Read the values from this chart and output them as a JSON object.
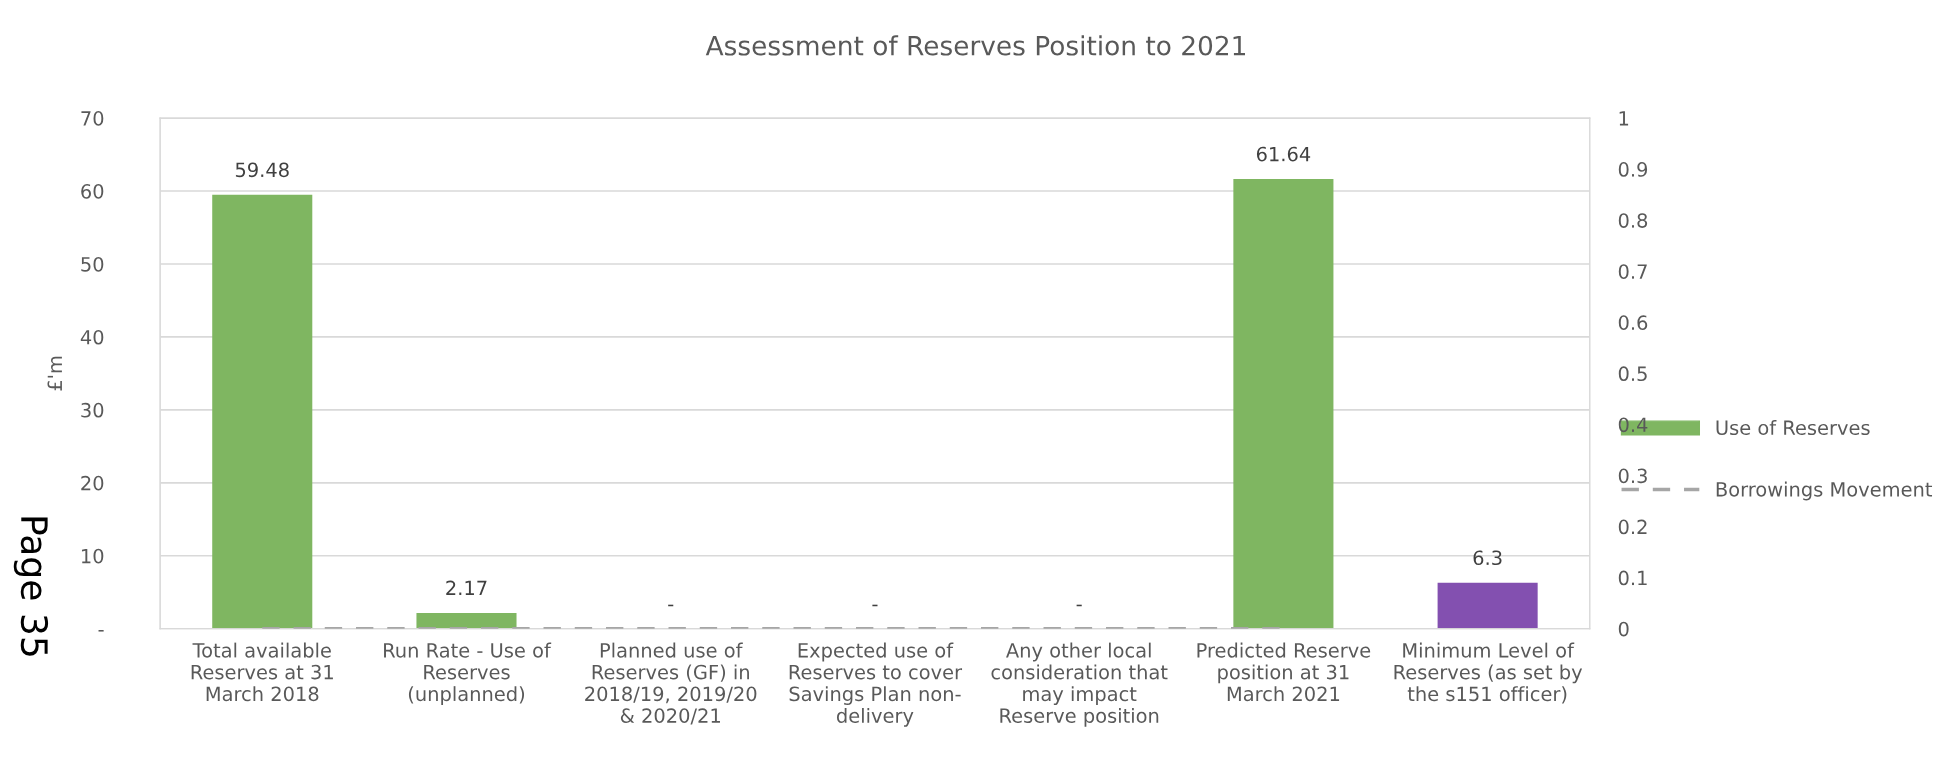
{
  "chart_data": {
    "type": "bar",
    "title": "Assessment of Reserves Position to 2021",
    "ylabel": "£'m",
    "categories": [
      "Total available\nReserves at 31\nMarch 2018",
      "Run Rate - Use of\nReserves\n(unplanned)",
      "Planned use of\nReserves (GF) in\n2018/19, 2019/20\n& 2020/21",
      "Expected use of\nReserves to cover\nSavings Plan non-\ndelivery",
      "Any other local\nconsideration that\nmay impact\nReserve position",
      "Predicted Reserve\nposition at 31\nMarch 2021",
      "Minimum Level of\nReserves (as set by\nthe s151 officer)"
    ],
    "series": [
      {
        "name": "Use of Reserves",
        "color": "#7fb661",
        "colors": [
          "#7fb661",
          "#7fb661",
          "#7fb661",
          "#7fb661",
          "#7fb661",
          "#7fb661",
          "#8350b0"
        ],
        "values": [
          59.48,
          2.17,
          0,
          0,
          0,
          61.64,
          6.3
        ],
        "value_labels": [
          "59.48",
          "2.17",
          "-",
          "-",
          "-",
          "61.64",
          "6.3"
        ]
      },
      {
        "name": "Borrowings Movement",
        "type": "line",
        "axis": "y2",
        "color": "#a6a6a6",
        "line_style": "dashed",
        "values": [
          0,
          0,
          0,
          0,
          0,
          0,
          null
        ]
      }
    ],
    "ylim": [
      0,
      70
    ],
    "yticks": [
      {
        "value": 0,
        "label": "-"
      },
      10,
      20,
      30,
      40,
      50,
      60,
      70
    ],
    "y2lim": [
      0,
      1
    ],
    "y2ticks": [
      0,
      0.1,
      0.2,
      0.3,
      0.4,
      0.5,
      0.6,
      0.7,
      0.8,
      0.9,
      1
    ],
    "grid": "y",
    "legend": "right",
    "marker": "none",
    "annotations": [
      "Page 35"
    ]
  }
}
